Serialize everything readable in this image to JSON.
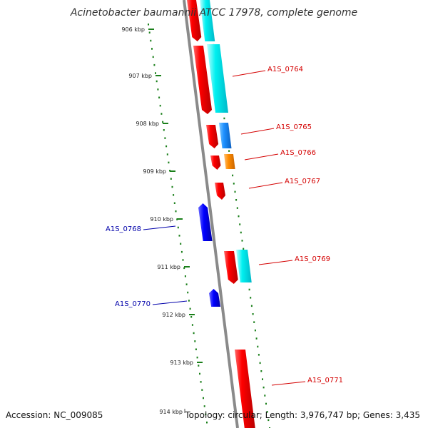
{
  "title": "Acinetobacter baumannii ATCC 17978, complete genome",
  "footer": {
    "accession": "Accession: NC_009085",
    "summary": "Topology: circular; Length: 3,976,747 bp; Genes: 3,435"
  },
  "colors": {
    "backbone": "#8a8a8a",
    "tick": "#1a7f1a",
    "cds_forward": "#ff0000",
    "gene_forward": "#00e5e5",
    "gene_forward_short": "#1e90ff",
    "gene_forward_alt": "#ff8c00",
    "cds_reverse": "#0000ff",
    "label_forward": "#d40000",
    "label_reverse": "#0000aa"
  },
  "axis": {
    "ticks": [
      "906 kbp",
      "907 kbp",
      "908 kbp",
      "909 kbp",
      "910 kbp",
      "911 kbp",
      "912 kbp",
      "913 kbp",
      "914 kbp"
    ]
  },
  "genes": [
    {
      "label": "A1S_0764",
      "strand": "forward"
    },
    {
      "label": "A1S_0765",
      "strand": "forward"
    },
    {
      "label": "A1S_0766",
      "strand": "forward"
    },
    {
      "label": "A1S_0767",
      "strand": "forward"
    },
    {
      "label": "A1S_0768",
      "strand": "reverse"
    },
    {
      "label": "A1S_0769",
      "strand": "forward"
    },
    {
      "label": "A1S_0770",
      "strand": "reverse"
    },
    {
      "label": "A1S_0771",
      "strand": "forward"
    }
  ]
}
